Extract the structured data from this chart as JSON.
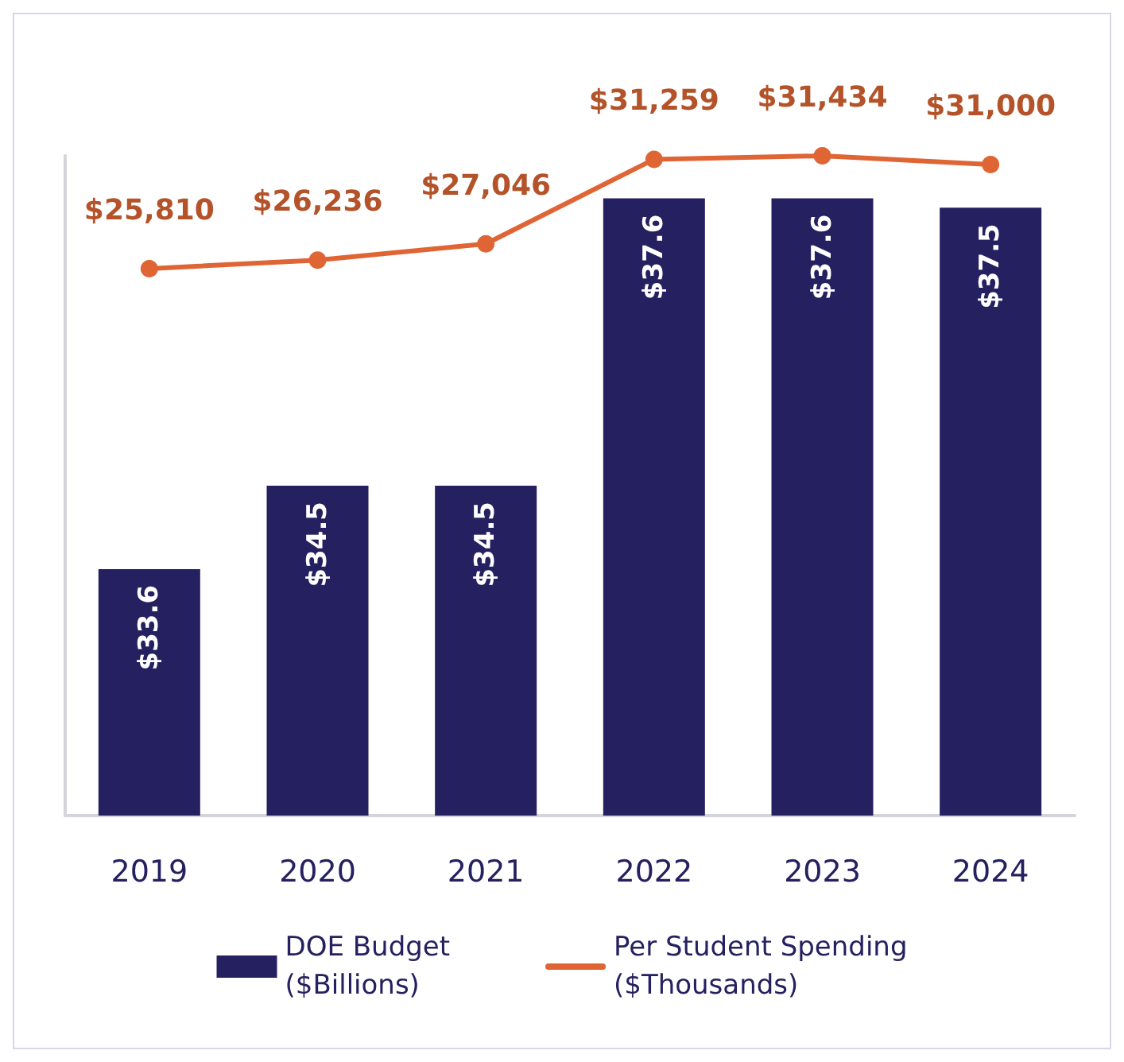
{
  "chart_data": {
    "type": "bar",
    "categories": [
      "2019",
      "2020",
      "2021",
      "2022",
      "2023",
      "2024"
    ],
    "series": [
      {
        "name": "DOE Budget\n($Billions)",
        "color": "#252060",
        "values": [
          33.6,
          34.5,
          34.5,
          37.6,
          37.6,
          37.5
        ],
        "value_labels": [
          "$33.6",
          "$34.5",
          "$34.5",
          "$37.6",
          "$37.6",
          "$37.5"
        ]
      },
      {
        "name": "Per Student Spending\n($Thousands)",
        "type": "line",
        "axis": "y2",
        "color": "#e06535",
        "values": [
          25810,
          26236,
          27046,
          31259,
          31434,
          31000
        ],
        "value_labels": [
          "$25,810",
          "$26,236",
          "$27,046",
          "$31,259",
          "$31,434",
          "$31,000"
        ]
      }
    ],
    "ylim": [
      30.94,
      38.06
    ],
    "y2lim": [
      -1450,
      31434
    ],
    "tick_labels": "x",
    "grid": false,
    "legend": "bottom",
    "marker": "circle",
    "line_style": "solid"
  }
}
